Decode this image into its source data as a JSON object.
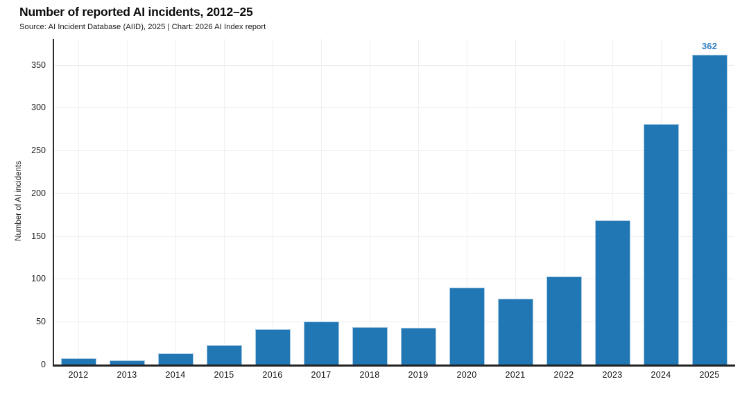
{
  "header": {
    "title": "Number of reported AI incidents, 2012–25",
    "source": "Source: AI Incident Database (AIID), 2025 | Chart: 2026 AI Index report"
  },
  "chart_data": {
    "type": "bar",
    "title": "Number of reported AI incidents, 2012–25",
    "categories": [
      "2012",
      "2013",
      "2014",
      "2015",
      "2016",
      "2017",
      "2018",
      "2019",
      "2020",
      "2021",
      "2022",
      "2023",
      "2024",
      "2025"
    ],
    "values": [
      7,
      5,
      13,
      23,
      41,
      50,
      44,
      43,
      90,
      77,
      103,
      168,
      281,
      362
    ],
    "value_labels": {
      "2025": "362"
    },
    "xlabel": "",
    "ylabel": "Number of AI incidents",
    "ylim": [
      0,
      380
    ],
    "yticks": [
      0,
      50,
      100,
      150,
      200,
      250,
      300,
      350
    ],
    "grid": "light horizontal and vertical gridlines",
    "legend": "none",
    "colors": {
      "bar_fill": "#2077b4",
      "bar_edge": "#a6c9e2",
      "value_label": "#2e7fc1",
      "axis_line": "#2e2e2e",
      "gridline": "#ededed"
    }
  }
}
